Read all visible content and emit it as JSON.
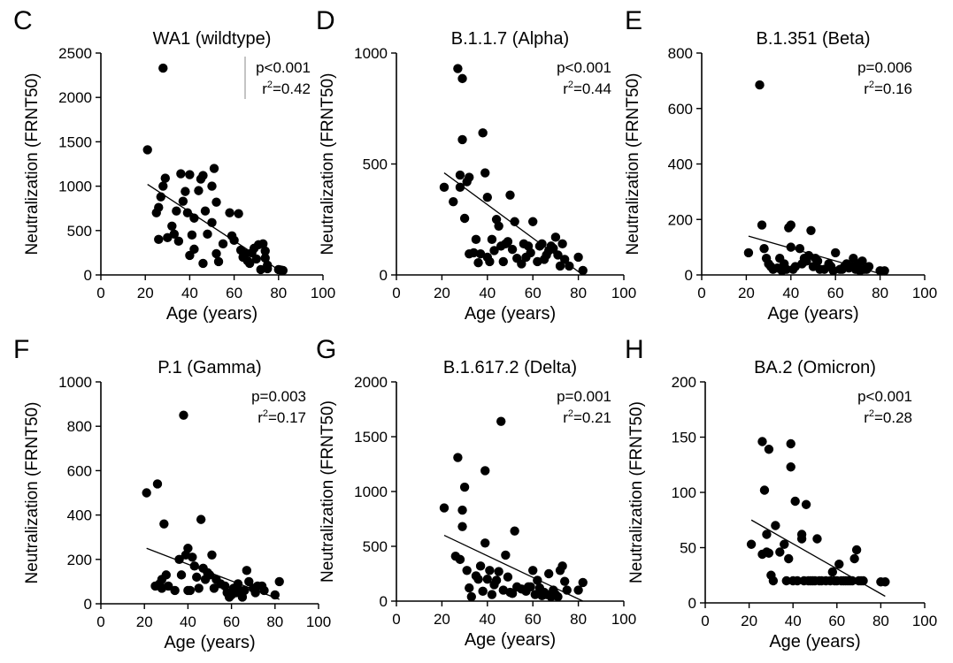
{
  "figure": {
    "xlabel": "Age (years)",
    "ylabel": "Neutralization (FRNT50)"
  },
  "chart_data": [
    {
      "type": "scatter",
      "panel": "C",
      "title": "WA1 (wildtype)",
      "xlabel": "Age (years)",
      "ylabel": "Neutralization (FRNT50)",
      "xlim": [
        0,
        100
      ],
      "ylim": [
        0,
        2500
      ],
      "xticks": [
        0,
        20,
        40,
        60,
        80,
        100
      ],
      "yticks": [
        0,
        500,
        1000,
        1500,
        2000,
        2500
      ],
      "stats": {
        "p": "p<0.001",
        "r2": "=0.42"
      },
      "trendline": [
        [
          21,
          1020
        ],
        [
          82,
          25
        ]
      ],
      "points": [
        [
          21,
          1410
        ],
        [
          28,
          2330
        ],
        [
          25,
          700
        ],
        [
          26,
          760
        ],
        [
          27,
          880
        ],
        [
          28,
          1000
        ],
        [
          29,
          1090
        ],
        [
          26,
          400
        ],
        [
          30,
          420
        ],
        [
          32,
          550
        ],
        [
          33,
          460
        ],
        [
          34,
          720
        ],
        [
          35,
          380
        ],
        [
          36,
          1140
        ],
        [
          37,
          830
        ],
        [
          38,
          940
        ],
        [
          39,
          700
        ],
        [
          40,
          1130
        ],
        [
          40,
          220
        ],
        [
          41,
          450
        ],
        [
          42,
          290
        ],
        [
          42,
          640
        ],
        [
          44,
          950
        ],
        [
          45,
          1080
        ],
        [
          46,
          1120
        ],
        [
          46,
          130
        ],
        [
          47,
          720
        ],
        [
          48,
          460
        ],
        [
          50,
          1000
        ],
        [
          50,
          590
        ],
        [
          51,
          1200
        ],
        [
          52,
          820
        ],
        [
          52,
          240
        ],
        [
          53,
          150
        ],
        [
          55,
          350
        ],
        [
          58,
          700
        ],
        [
          59,
          440
        ],
        [
          60,
          390
        ],
        [
          62,
          690
        ],
        [
          63,
          280
        ],
        [
          64,
          200
        ],
        [
          65,
          240
        ],
        [
          66,
          160
        ],
        [
          67,
          130
        ],
        [
          68,
          250
        ],
        [
          69,
          300
        ],
        [
          70,
          180
        ],
        [
          71,
          340
        ],
        [
          72,
          60
        ],
        [
          73,
          350
        ],
        [
          74,
          270
        ],
        [
          74,
          190
        ],
        [
          75,
          110
        ],
        [
          75,
          70
        ],
        [
          80,
          60
        ],
        [
          81,
          55
        ],
        [
          82,
          50
        ]
      ],
      "annotation": "hline-behind-stats"
    },
    {
      "type": "scatter",
      "panel": "D",
      "title": "B.1.1.7 (Alpha)",
      "xlabel": "Age (years)",
      "ylabel": "Neutralization (FRNT50)",
      "xlim": [
        0,
        100
      ],
      "ylim": [
        0,
        1000
      ],
      "xticks": [
        0,
        20,
        40,
        60,
        80,
        100
      ],
      "yticks": [
        0,
        500,
        1000
      ],
      "stats": {
        "p": "p<0.001",
        "r2": "=0.44"
      },
      "trendline": [
        [
          21,
          460
        ],
        [
          82,
          0
        ]
      ],
      "points": [
        [
          21,
          395
        ],
        [
          25,
          330
        ],
        [
          27,
          930
        ],
        [
          28,
          450
        ],
        [
          28,
          395
        ],
        [
          29,
          885
        ],
        [
          29,
          610
        ],
        [
          30,
          255
        ],
        [
          31,
          420
        ],
        [
          32,
          440
        ],
        [
          32,
          95
        ],
        [
          34,
          100
        ],
        [
          35,
          160
        ],
        [
          36,
          55
        ],
        [
          37,
          95
        ],
        [
          38,
          640
        ],
        [
          39,
          460
        ],
        [
          40,
          350
        ],
        [
          40,
          80
        ],
        [
          41,
          60
        ],
        [
          42,
          160
        ],
        [
          43,
          110
        ],
        [
          44,
          250
        ],
        [
          45,
          220
        ],
        [
          46,
          130
        ],
        [
          47,
          60
        ],
        [
          48,
          140
        ],
        [
          49,
          150
        ],
        [
          50,
          360
        ],
        [
          51,
          115
        ],
        [
          52,
          240
        ],
        [
          53,
          75
        ],
        [
          55,
          50
        ],
        [
          56,
          140
        ],
        [
          57,
          80
        ],
        [
          58,
          130
        ],
        [
          59,
          100
        ],
        [
          60,
          240
        ],
        [
          62,
          60
        ],
        [
          63,
          130
        ],
        [
          64,
          140
        ],
        [
          65,
          70
        ],
        [
          66,
          90
        ],
        [
          67,
          110
        ],
        [
          68,
          130
        ],
        [
          69,
          120
        ],
        [
          70,
          170
        ],
        [
          71,
          90
        ],
        [
          72,
          40
        ],
        [
          73,
          140
        ],
        [
          74,
          70
        ],
        [
          76,
          40
        ],
        [
          80,
          80
        ],
        [
          82,
          20
        ]
      ]
    },
    {
      "type": "scatter",
      "panel": "E",
      "title": "B.1.351 (Beta)",
      "xlabel": "Age (years)",
      "ylabel": "Neutralization (FRNT50)",
      "xlim": [
        0,
        100
      ],
      "ylim": [
        0,
        800
      ],
      "xticks": [
        0,
        20,
        40,
        60,
        80,
        100
      ],
      "yticks": [
        0,
        200,
        400,
        600,
        800
      ],
      "stats": {
        "p": "p=0.006",
        "r2": "=0.16"
      },
      "trendline": [
        [
          21,
          140
        ],
        [
          82,
          0
        ]
      ],
      "points": [
        [
          21,
          80
        ],
        [
          26,
          685
        ],
        [
          27,
          180
        ],
        [
          28,
          95
        ],
        [
          29,
          60
        ],
        [
          30,
          40
        ],
        [
          31,
          30
        ],
        [
          32,
          20
        ],
        [
          34,
          25
        ],
        [
          35,
          60
        ],
        [
          36,
          15
        ],
        [
          37,
          40
        ],
        [
          38,
          20
        ],
        [
          39,
          170
        ],
        [
          40,
          180
        ],
        [
          40,
          100
        ],
        [
          41,
          20
        ],
        [
          42,
          30
        ],
        [
          44,
          95
        ],
        [
          45,
          40
        ],
        [
          46,
          60
        ],
        [
          47,
          50
        ],
        [
          48,
          70
        ],
        [
          49,
          160
        ],
        [
          50,
          30
        ],
        [
          51,
          60
        ],
        [
          52,
          50
        ],
        [
          53,
          20
        ],
        [
          55,
          20
        ],
        [
          57,
          40
        ],
        [
          58,
          30
        ],
        [
          59,
          15
        ],
        [
          60,
          80
        ],
        [
          62,
          20
        ],
        [
          63,
          20
        ],
        [
          64,
          30
        ],
        [
          65,
          40
        ],
        [
          66,
          25
        ],
        [
          67,
          30
        ],
        [
          68,
          60
        ],
        [
          69,
          20
        ],
        [
          70,
          40
        ],
        [
          71,
          15
        ],
        [
          72,
          50
        ],
        [
          73,
          20
        ],
        [
          74,
          20
        ],
        [
          75,
          30
        ],
        [
          80,
          15
        ],
        [
          82,
          15
        ]
      ]
    },
    {
      "type": "scatter",
      "panel": "F",
      "title": "P.1 (Gamma)",
      "xlabel": "Age (years)",
      "ylabel": "Neutralization (FRNT50)",
      "xlim": [
        0,
        100
      ],
      "ylim": [
        0,
        1000
      ],
      "xticks": [
        0,
        20,
        40,
        60,
        80,
        100
      ],
      "yticks": [
        0,
        200,
        400,
        600,
        800,
        1000
      ],
      "stats": {
        "p": "p=0.003",
        "r2": "=0.17"
      },
      "trendline": [
        [
          21,
          250
        ],
        [
          82,
          20
        ]
      ],
      "points": [
        [
          21,
          500
        ],
        [
          26,
          540
        ],
        [
          25,
          80
        ],
        [
          27,
          90
        ],
        [
          28,
          70
        ],
        [
          29,
          360
        ],
        [
          28,
          110
        ],
        [
          30,
          130
        ],
        [
          31,
          80
        ],
        [
          34,
          60
        ],
        [
          36,
          200
        ],
        [
          37,
          130
        ],
        [
          38,
          850
        ],
        [
          39,
          220
        ],
        [
          40,
          250
        ],
        [
          40,
          60
        ],
        [
          41,
          60
        ],
        [
          42,
          210
        ],
        [
          43,
          170
        ],
        [
          44,
          120
        ],
        [
          45,
          70
        ],
        [
          46,
          380
        ],
        [
          47,
          160
        ],
        [
          48,
          110
        ],
        [
          49,
          140
        ],
        [
          50,
          130
        ],
        [
          51,
          220
        ],
        [
          52,
          70
        ],
        [
          53,
          110
        ],
        [
          55,
          90
        ],
        [
          57,
          80
        ],
        [
          58,
          50
        ],
        [
          59,
          30
        ],
        [
          60,
          40
        ],
        [
          61,
          70
        ],
        [
          62,
          50
        ],
        [
          63,
          90
        ],
        [
          64,
          60
        ],
        [
          65,
          30
        ],
        [
          66,
          60
        ],
        [
          67,
          150
        ],
        [
          68,
          100
        ],
        [
          70,
          70
        ],
        [
          71,
          50
        ],
        [
          72,
          80
        ],
        [
          74,
          80
        ],
        [
          75,
          60
        ],
        [
          80,
          40
        ],
        [
          82,
          100
        ]
      ]
    },
    {
      "type": "scatter",
      "panel": "G",
      "title": "B.1.617.2 (Delta)",
      "xlabel": "Age (years)",
      "ylabel": "Neutralization (FRNT50)",
      "xlim": [
        0,
        100
      ],
      "ylim": [
        0,
        2000
      ],
      "xticks": [
        0,
        20,
        40,
        60,
        80,
        100
      ],
      "yticks": [
        0,
        500,
        1000,
        1500,
        2000
      ],
      "stats": {
        "p": "p=0.001",
        "r2": "=0.21"
      },
      "trendline": [
        [
          21,
          600
        ],
        [
          82,
          0
        ]
      ],
      "points": [
        [
          21,
          850
        ],
        [
          26,
          410
        ],
        [
          27,
          1310
        ],
        [
          28,
          380
        ],
        [
          29,
          830
        ],
        [
          29,
          680
        ],
        [
          30,
          1040
        ],
        [
          31,
          280
        ],
        [
          32,
          120
        ],
        [
          33,
          40
        ],
        [
          35,
          230
        ],
        [
          36,
          200
        ],
        [
          37,
          320
        ],
        [
          38,
          90
        ],
        [
          39,
          1190
        ],
        [
          39,
          530
        ],
        [
          40,
          200
        ],
        [
          41,
          280
        ],
        [
          42,
          60
        ],
        [
          43,
          150
        ],
        [
          44,
          190
        ],
        [
          45,
          270
        ],
        [
          46,
          1640
        ],
        [
          47,
          100
        ],
        [
          48,
          420
        ],
        [
          49,
          220
        ],
        [
          50,
          80
        ],
        [
          51,
          70
        ],
        [
          52,
          640
        ],
        [
          53,
          130
        ],
        [
          55,
          110
        ],
        [
          57,
          90
        ],
        [
          58,
          130
        ],
        [
          59,
          130
        ],
        [
          60,
          280
        ],
        [
          61,
          60
        ],
        [
          62,
          190
        ],
        [
          63,
          120
        ],
        [
          64,
          50
        ],
        [
          65,
          80
        ],
        [
          66,
          60
        ],
        [
          67,
          250
        ],
        [
          68,
          40
        ],
        [
          69,
          100
        ],
        [
          70,
          60
        ],
        [
          71,
          40
        ],
        [
          72,
          280
        ],
        [
          73,
          320
        ],
        [
          74,
          180
        ],
        [
          75,
          100
        ],
        [
          80,
          100
        ],
        [
          82,
          170
        ]
      ]
    },
    {
      "type": "scatter",
      "panel": "H",
      "title": "BA.2 (Omicron)",
      "xlabel": "Age (years)",
      "ylabel": "Neutralization (FRNT50)",
      "xlim": [
        0,
        100
      ],
      "ylim": [
        0,
        200
      ],
      "xticks": [
        0,
        20,
        40,
        60,
        80,
        100
      ],
      "yticks": [
        0,
        50,
        100,
        150,
        200
      ],
      "stats": {
        "p": "p<0.001",
        "r2": "=0.28"
      },
      "trendline": [
        [
          21,
          75
        ],
        [
          82,
          6
        ]
      ],
      "points": [
        [
          21,
          53
        ],
        [
          26,
          44
        ],
        [
          26,
          146
        ],
        [
          27,
          102
        ],
        [
          28,
          46
        ],
        [
          28,
          62
        ],
        [
          29,
          139
        ],
        [
          29,
          45
        ],
        [
          30,
          25
        ],
        [
          31,
          20
        ],
        [
          32,
          70
        ],
        [
          34,
          46
        ],
        [
          36,
          53
        ],
        [
          37,
          20
        ],
        [
          38,
          40
        ],
        [
          39,
          144
        ],
        [
          39,
          123
        ],
        [
          40,
          20
        ],
        [
          41,
          92
        ],
        [
          42,
          20
        ],
        [
          44,
          62
        ],
        [
          44,
          58
        ],
        [
          45,
          20
        ],
        [
          46,
          89
        ],
        [
          47,
          20
        ],
        [
          48,
          20
        ],
        [
          49,
          20
        ],
        [
          50,
          20
        ],
        [
          51,
          58
        ],
        [
          52,
          20
        ],
        [
          53,
          20
        ],
        [
          55,
          20
        ],
        [
          57,
          20
        ],
        [
          58,
          28
        ],
        [
          59,
          20
        ],
        [
          60,
          20
        ],
        [
          61,
          35
        ],
        [
          62,
          20
        ],
        [
          63,
          20
        ],
        [
          64,
          20
        ],
        [
          65,
          20
        ],
        [
          66,
          20
        ],
        [
          67,
          20
        ],
        [
          68,
          40
        ],
        [
          69,
          48
        ],
        [
          70,
          20
        ],
        [
          71,
          20
        ],
        [
          72,
          20
        ],
        [
          80,
          19
        ],
        [
          82,
          19
        ]
      ]
    }
  ]
}
